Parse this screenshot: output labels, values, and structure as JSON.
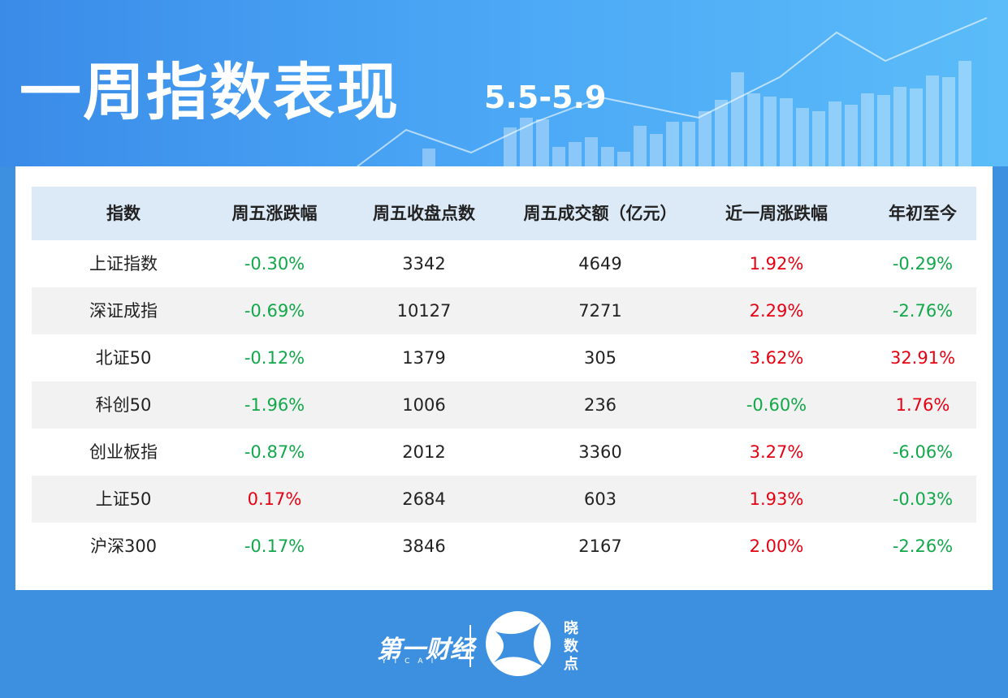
{
  "header": {
    "title": "一周指数表现",
    "date": "5.5-5.9"
  },
  "table": {
    "columns": [
      "指数",
      "周五涨跌幅",
      "周五收盘点数",
      "周五成交额（亿元）",
      "近一周涨跌幅",
      "年初至今"
    ],
    "rows": [
      [
        "上证指数",
        "-0.30%",
        "3342",
        "4649",
        "1.92%",
        "-0.29%"
      ],
      [
        "深证成指",
        "-0.69%",
        "10127",
        "7271",
        "2.29%",
        "-2.76%"
      ],
      [
        "北证50",
        "-0.12%",
        "1379",
        "305",
        "3.62%",
        "32.91%"
      ],
      [
        "科创50",
        "-1.96%",
        "1006",
        "236",
        "-0.60%",
        "1.76%"
      ],
      [
        "创业板指",
        "-0.87%",
        "2012",
        "3360",
        "3.27%",
        "-6.06%"
      ],
      [
        "上证50",
        "0.17%",
        "2684",
        "603",
        "1.93%",
        "-0.03%"
      ],
      [
        "沪深300",
        "-0.17%",
        "3846",
        "2167",
        "2.00%",
        "-2.26%"
      ]
    ]
  },
  "footer": {
    "brand": "第一财经",
    "brand_en": "YICAI",
    "product": "晓数点"
  }
}
